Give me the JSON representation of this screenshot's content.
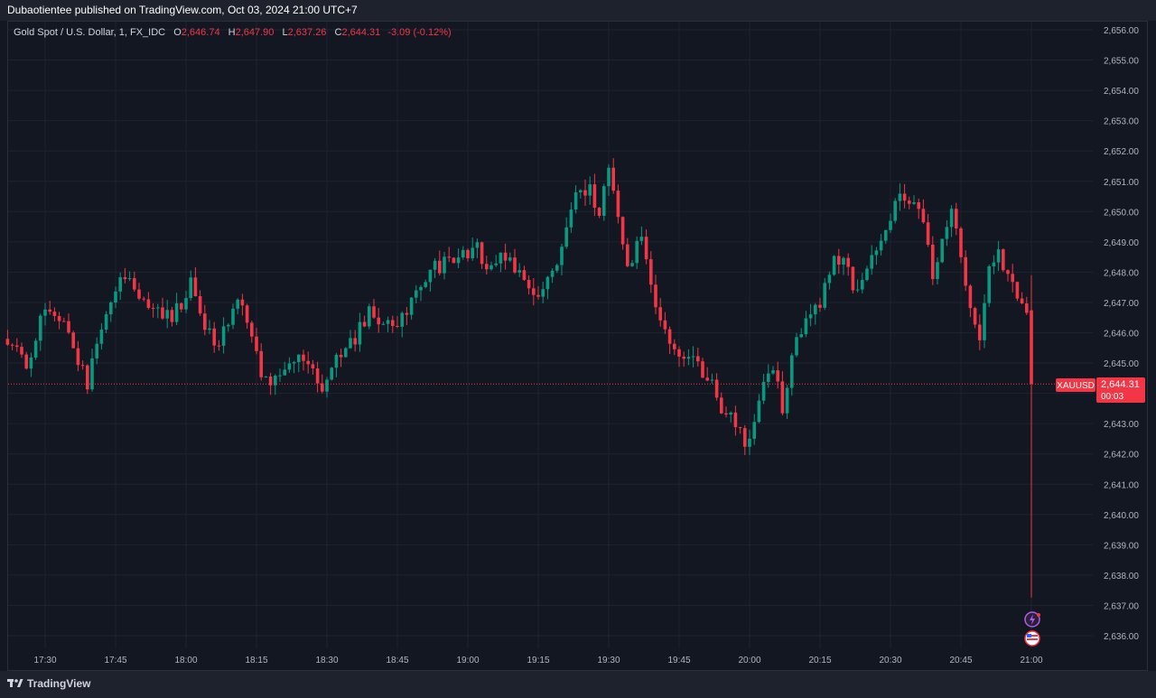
{
  "header": {
    "published_text": "Dubaotientee published on TradingView.com, Oct 03, 2024 21:00 UTC+7"
  },
  "legend": {
    "instrument": "Gold Spot / U.S. Dollar, 1, FX_IDC",
    "open_label": "O",
    "open": "2,646.74",
    "high_label": "H",
    "high": "2,647.90",
    "low_label": "L",
    "low": "2,637.26",
    "close_label": "C",
    "close": "2,644.31",
    "change": "-3.09 (-0.12%)"
  },
  "price_tag": {
    "symbol": "XAUUSD",
    "price": "2,644.31",
    "countdown": "00:03"
  },
  "footer": {
    "brand": "TradingView"
  },
  "colors": {
    "background": "#131722",
    "up": "#089981",
    "down": "#f23645",
    "grid": "#1f2330",
    "axis_text": "#b2b5be"
  },
  "icons": [
    "lightning-event-icon",
    "us-flag-event-icon"
  ],
  "chart_data": {
    "type": "candlestick",
    "title": "Gold Spot / U.S. Dollar, 1, FX_IDC",
    "xlabel": "",
    "ylabel": "",
    "ylim": [
      2635.6,
      2656.2
    ],
    "x_range": [
      "17:22",
      "21:00"
    ],
    "y_ticks": [
      "2,656.00",
      "2,655.00",
      "2,654.00",
      "2,653.00",
      "2,652.00",
      "2,651.00",
      "2,650.00",
      "2,649.00",
      "2,648.00",
      "2,647.00",
      "2,646.00",
      "2,645.00",
      "2,644.00",
      "2,643.00",
      "2,642.00",
      "2,641.00",
      "2,640.00",
      "2,639.00",
      "2,638.00",
      "2,637.00",
      "2,636.00"
    ],
    "x_ticks": [
      "17:30",
      "17:45",
      "18:00",
      "18:15",
      "18:30",
      "18:45",
      "19:00",
      "19:15",
      "19:30",
      "19:45",
      "20:00",
      "20:15",
      "20:30",
      "20:45",
      "21:00"
    ],
    "grid": true,
    "last_price": 2644.31,
    "anchors": [
      [
        "17:22",
        2645.8
      ],
      [
        "17:27",
        2645.0
      ],
      [
        "17:31",
        2646.8
      ],
      [
        "17:35",
        2646.5
      ],
      [
        "17:37",
        2645.5
      ],
      [
        "17:40",
        2644.4
      ],
      [
        "17:44",
        2646.4
      ],
      [
        "17:47",
        2647.6
      ],
      [
        "17:50",
        2647.5
      ],
      [
        "17:53",
        2646.8
      ],
      [
        "17:57",
        2646.5
      ],
      [
        "18:00",
        2646.8
      ],
      [
        "18:02",
        2647.7
      ],
      [
        "18:04",
        2646.6
      ],
      [
        "18:07",
        2645.6
      ],
      [
        "18:10",
        2646.3
      ],
      [
        "18:12",
        2647.3
      ],
      [
        "18:14",
        2646.5
      ],
      [
        "18:16",
        2645.2
      ],
      [
        "18:18",
        2644.3
      ],
      [
        "18:22",
        2644.9
      ],
      [
        "18:26",
        2645.2
      ],
      [
        "18:30",
        2644.3
      ],
      [
        "18:33",
        2645.0
      ],
      [
        "18:36",
        2645.6
      ],
      [
        "18:40",
        2646.7
      ],
      [
        "18:44",
        2646.2
      ],
      [
        "18:47",
        2646.4
      ],
      [
        "18:50",
        2647.5
      ],
      [
        "18:53",
        2648.1
      ],
      [
        "18:57",
        2648.3
      ],
      [
        "19:00",
        2648.6
      ],
      [
        "19:03",
        2648.8
      ],
      [
        "19:06",
        2648.0
      ],
      [
        "19:09",
        2648.6
      ],
      [
        "19:13",
        2647.6
      ],
      [
        "19:16",
        2647.1
      ],
      [
        "19:20",
        2648.4
      ],
      [
        "19:24",
        2650.4
      ],
      [
        "19:27",
        2650.7
      ],
      [
        "19:29",
        2650.1
      ],
      [
        "19:31",
        2651.5
      ],
      [
        "19:33",
        2650.0
      ],
      [
        "19:35",
        2648.0
      ],
      [
        "19:38",
        2649.3
      ],
      [
        "19:41",
        2647.0
      ],
      [
        "19:44",
        2645.6
      ],
      [
        "19:47",
        2645.4
      ],
      [
        "19:50",
        2645.0
      ],
      [
        "19:53",
        2644.2
      ],
      [
        "19:56",
        2643.3
      ],
      [
        "20:00",
        2642.5
      ],
      [
        "20:02",
        2643.0
      ],
      [
        "20:04",
        2644.4
      ],
      [
        "20:06",
        2644.9
      ],
      [
        "20:08",
        2643.4
      ],
      [
        "20:10",
        2645.3
      ],
      [
        "20:13",
        2646.3
      ],
      [
        "20:16",
        2647.0
      ],
      [
        "20:19",
        2648.6
      ],
      [
        "20:22",
        2648.1
      ],
      [
        "20:24",
        2647.2
      ],
      [
        "20:26",
        2648.2
      ],
      [
        "20:29",
        2649.3
      ],
      [
        "20:33",
        2650.6
      ],
      [
        "20:35",
        2650.4
      ],
      [
        "20:38",
        2649.8
      ],
      [
        "20:40",
        2648.0
      ],
      [
        "20:42",
        2648.9
      ],
      [
        "20:44",
        2650.3
      ],
      [
        "20:46",
        2648.4
      ],
      [
        "20:48",
        2646.6
      ],
      [
        "20:50",
        2645.8
      ],
      [
        "20:52",
        2648.3
      ],
      [
        "20:54",
        2648.6
      ],
      [
        "20:55",
        2648.0
      ],
      [
        "20:57",
        2647.6
      ],
      [
        "21:00",
        2646.74
      ]
    ],
    "last_candle": {
      "time": "21:00",
      "open": 2646.74,
      "high": 2647.9,
      "low": 2637.26,
      "close": 2644.31
    }
  }
}
